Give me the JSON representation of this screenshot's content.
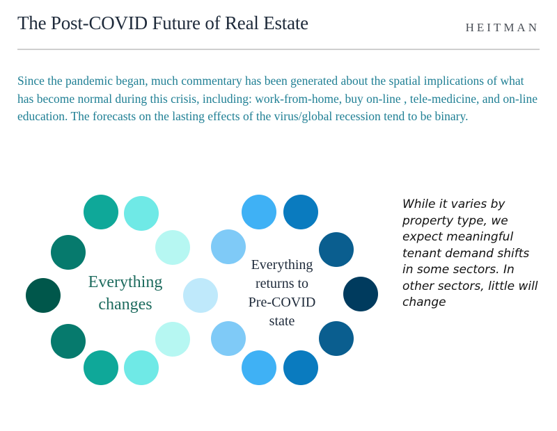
{
  "header": {
    "title": "The Post-COVID Future of Real Estate",
    "brand": "HEITMAN"
  },
  "intro": {
    "text": "Since the pandemic began, much commentary has been generated about the spatial implications of what has become normal during this crisis, including:  work-from-home, buy on-line , tele-medicine, and on-line education. The forecasts on the lasting effects of the virus/global recession tend to be binary."
  },
  "diagram": {
    "left_label": "Everything\nchanges",
    "right_label": "Everything\nreturns to\nPre-COVID\nstate",
    "colors": {
      "left_dark": "#00574b",
      "left_mid": "#067a6d",
      "left_teal": "#0fa899",
      "left_light": "#6fe9e6",
      "left_pale": "#b6f7f2",
      "center": "#bfe9fb",
      "right_pale": "#7fcaf7",
      "right_light": "#3fb1f5",
      "right_mid": "#0a7bbf",
      "right_deep": "#0a5e8f",
      "right_dark": "#003b5e"
    }
  },
  "side_note": {
    "text": "While it varies by property type, we expect meaningful tenant demand shifts in some sectors. In other sectors, little will change"
  }
}
